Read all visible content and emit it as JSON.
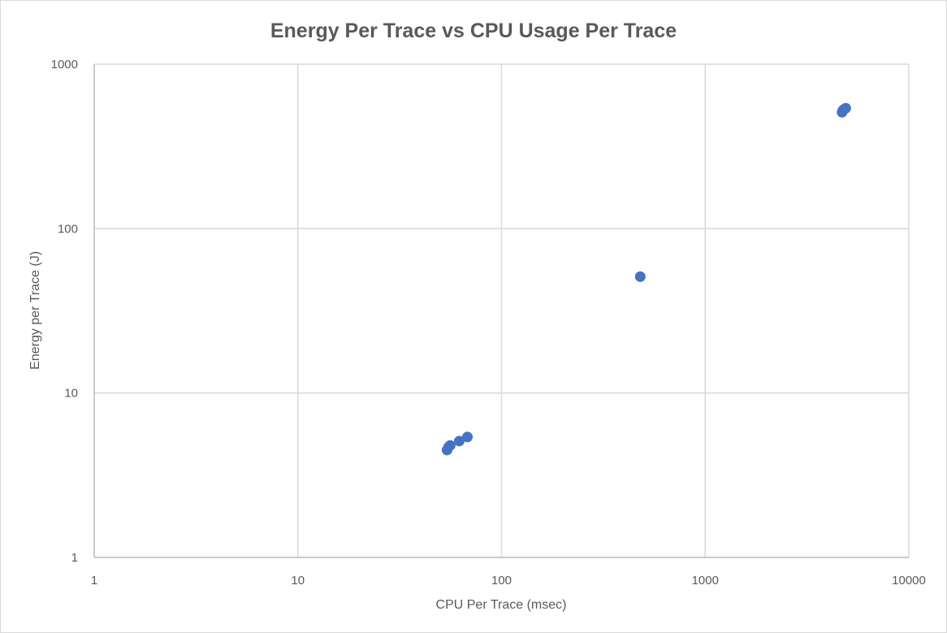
{
  "chart_data": {
    "type": "scatter",
    "title": "Energy Per Trace vs CPU Usage Per Trace",
    "xlabel": "CPU Per Trace (msec)",
    "ylabel": "Energy per Trace (J)",
    "x_scale": "log",
    "y_scale": "log",
    "xlim": [
      1,
      10000
    ],
    "ylim": [
      1,
      1000
    ],
    "x_ticks": [
      "1",
      "10",
      "100",
      "1000",
      "10000"
    ],
    "y_ticks": [
      "1",
      "10",
      "100",
      "1000"
    ],
    "grid": true,
    "legend": "none",
    "series": [
      {
        "color": "#4472c4",
        "points": [
          {
            "x": 54,
            "y": 4.5
          },
          {
            "x": 55,
            "y": 4.7
          },
          {
            "x": 56,
            "y": 4.8
          },
          {
            "x": 62,
            "y": 5.1
          },
          {
            "x": 68,
            "y": 5.4
          },
          {
            "x": 480,
            "y": 51
          },
          {
            "x": 4700,
            "y": 510
          },
          {
            "x": 4750,
            "y": 525
          },
          {
            "x": 4800,
            "y": 530
          },
          {
            "x": 4900,
            "y": 540
          }
        ]
      }
    ]
  }
}
